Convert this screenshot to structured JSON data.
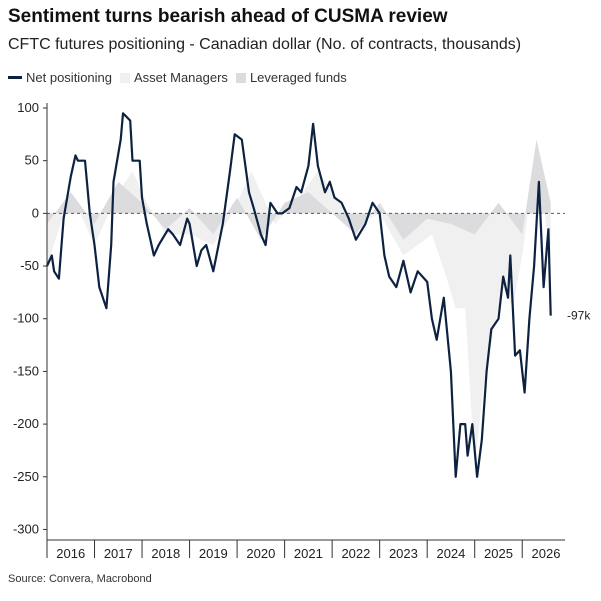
{
  "title": "Sentiment turns bearish ahead of CUSMA review",
  "subtitle": "CFTC futures positioning - Canadian dollar (No. of contracts, thousands)",
  "legend": {
    "net": "Net positioning",
    "asset": "Asset Managers",
    "lev": "Leveraged funds"
  },
  "source": "Source: Convera, Macrobond",
  "colors": {
    "net": "#0d2240",
    "asset": "#f0f0f1",
    "lev": "#dcdcde"
  },
  "chart_data": {
    "type": "line",
    "x_range": [
      2015.5,
      2026.4
    ],
    "ylim": [
      -310,
      100
    ],
    "y_ticks": [
      100,
      50,
      0,
      -50,
      -100,
      -150,
      -200,
      -250,
      -300
    ],
    "x_ticks": [
      2016,
      2017,
      2018,
      2019,
      2020,
      2021,
      2022,
      2023,
      2024,
      2025,
      2026
    ],
    "end_label": "-97k",
    "series": [
      {
        "name": "Net positioning",
        "x": [
          2015.5,
          2015.6,
          2015.65,
          2015.75,
          2015.85,
          2016.0,
          2016.1,
          2016.15,
          2016.3,
          2016.4,
          2016.5,
          2016.6,
          2016.75,
          2016.85,
          2016.9,
          2017.05,
          2017.1,
          2017.25,
          2017.3,
          2017.45,
          2017.5,
          2017.6,
          2017.75,
          2017.85,
          2018.05,
          2018.15,
          2018.3,
          2018.45,
          2018.5,
          2018.65,
          2018.75,
          2018.85,
          2019.0,
          2019.2,
          2019.35,
          2019.45,
          2019.6,
          2019.75,
          2019.85,
          2020.0,
          2020.1,
          2020.2,
          2020.35,
          2020.45,
          2020.6,
          2020.75,
          2020.85,
          2021.0,
          2021.1,
          2021.2,
          2021.35,
          2021.45,
          2021.55,
          2021.7,
          2021.85,
          2022.0,
          2022.2,
          2022.35,
          2022.5,
          2022.6,
          2022.7,
          2022.85,
          2023.0,
          2023.15,
          2023.3,
          2023.5,
          2023.6,
          2023.7,
          2023.85,
          2024.0,
          2024.1,
          2024.2,
          2024.3,
          2024.35,
          2024.45,
          2024.55,
          2024.65,
          2024.75,
          2024.85,
          2025.0,
          2025.1,
          2025.2,
          2025.25,
          2025.35,
          2025.45,
          2025.55,
          2025.65,
          2025.75,
          2025.85,
          2025.95,
          2026.05,
          2026.1
        ],
        "y": [
          -50,
          -40,
          -55,
          -62,
          -5,
          35,
          55,
          50,
          50,
          0,
          -30,
          -70,
          -90,
          -30,
          30,
          70,
          95,
          88,
          50,
          50,
          15,
          -10,
          -40,
          -30,
          -15,
          -20,
          -30,
          -5,
          -10,
          -50,
          -35,
          -30,
          -55,
          -10,
          40,
          75,
          70,
          20,
          5,
          -20,
          -30,
          10,
          0,
          0,
          5,
          25,
          20,
          45,
          85,
          45,
          20,
          30,
          15,
          10,
          -5,
          -25,
          -10,
          10,
          0,
          -40,
          -60,
          -70,
          -45,
          -75,
          -55,
          -65,
          -100,
          -120,
          -80,
          -150,
          -250,
          -200,
          -200,
          -230,
          -200,
          -250,
          -215,
          -150,
          -110,
          -100,
          -60,
          -80,
          -40,
          -135,
          -130,
          -170,
          -100,
          -50,
          30,
          -70,
          -15,
          -97
        ]
      },
      {
        "name": "Asset Managers",
        "x": [
          2015.5,
          2016.0,
          2016.5,
          2017.0,
          2017.3,
          2017.6,
          2018.0,
          2018.5,
          2019.0,
          2019.4,
          2019.8,
          2020.3,
          2020.8,
          2021.2,
          2021.6,
          2022.0,
          2022.5,
          2023.0,
          2023.3,
          2023.6,
          2023.9,
          2024.1,
          2024.3,
          2024.5,
          2024.7,
          2024.9,
          2025.1,
          2025.3,
          2025.5,
          2025.8,
          2026.0,
          2026.1
        ],
        "y": [
          -50,
          20,
          -30,
          20,
          40,
          10,
          -20,
          -20,
          -30,
          0,
          40,
          -10,
          15,
          40,
          15,
          -10,
          0,
          -40,
          -30,
          -20,
          -60,
          -90,
          -90,
          -240,
          -160,
          -110,
          -70,
          -90,
          -40,
          60,
          -10,
          -40
        ]
      },
      {
        "name": "Leveraged funds",
        "x": [
          2015.5,
          2016.0,
          2016.5,
          2017.0,
          2017.5,
          2018.0,
          2018.5,
          2019.0,
          2019.5,
          2020.0,
          2020.5,
          2021.0,
          2021.5,
          2022.0,
          2022.5,
          2023.0,
          2023.5,
          2024.0,
          2024.5,
          2025.0,
          2025.5,
          2025.8,
          2026.0,
          2026.1
        ],
        "y": [
          -10,
          20,
          -10,
          30,
          10,
          -15,
          5,
          -20,
          15,
          -25,
          10,
          20,
          0,
          -20,
          10,
          -25,
          -5,
          -10,
          -20,
          10,
          -20,
          70,
          30,
          10
        ]
      }
    ]
  }
}
